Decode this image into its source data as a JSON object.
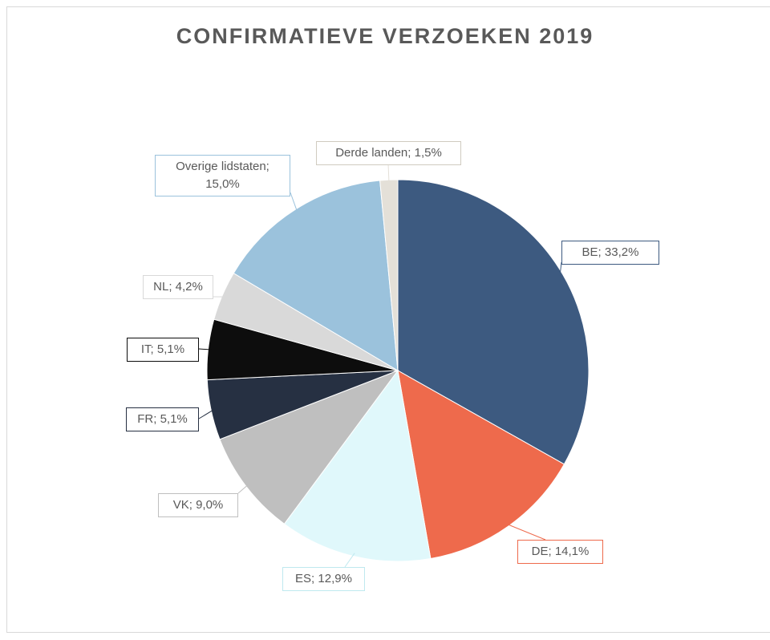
{
  "chart_data": {
    "type": "pie",
    "title": "CONFIRMATIEVE VERZOEKEN 2019",
    "categories": [
      "BE",
      "DE",
      "ES",
      "VK",
      "FR",
      "IT",
      "NL",
      "Overige lidstaten",
      "Derde landen"
    ],
    "values": [
      33.2,
      14.1,
      12.9,
      9.0,
      5.1,
      5.1,
      4.2,
      15.0,
      1.5
    ],
    "value_labels": [
      "BE; 33,2%",
      "DE; 14,1%",
      "ES; 12,9%",
      "VK; 9,0%",
      "FR; 5,1%",
      "IT; 5,1%",
      "NL; 4,2%",
      "Overige lidstaten; 15,0%",
      "Derde landen; 1,5%"
    ],
    "colors": [
      "#3d5a80",
      "#ee6a4c",
      "#e0f8fb",
      "#bfbfbf",
      "#263042",
      "#0d0d0d",
      "#d9d9d9",
      "#9bc2dc",
      "#e4e0d8"
    ]
  }
}
